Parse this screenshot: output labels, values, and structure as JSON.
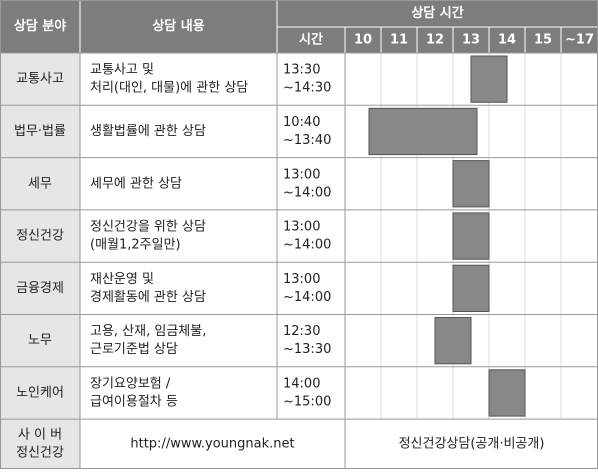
{
  "header": {
    "field": "상담 분야",
    "content": "상담 내용",
    "time_group": "상담 시간",
    "time": "시간",
    "hours": [
      "10",
      "11",
      "12",
      "13",
      "14",
      "15",
      "~17"
    ]
  },
  "rows": [
    {
      "field": "교통사고",
      "content": [
        "교통사고 및",
        "처리(대인, 대물)에 관한 상담"
      ],
      "time": [
        "13:30",
        "~14:30"
      ]
    },
    {
      "field": "법무·법률",
      "content": [
        "생활법률에 관한 상담"
      ],
      "time": [
        "10:40",
        "~13:40"
      ]
    },
    {
      "field": "세무",
      "content": [
        "세무에 관한 상담"
      ],
      "time": [
        "13:00",
        "~14:00"
      ]
    },
    {
      "field": "정신건강",
      "content": [
        "정신건강을 위한 상담",
        "(매월1,2주일만)"
      ],
      "time": [
        "13:00",
        "~14:00"
      ]
    },
    {
      "field": "금융경제",
      "content": [
        "재산운영 및",
        "경제활동에 관한 상담"
      ],
      "time": [
        "13:00",
        "~14:00"
      ]
    },
    {
      "field": "노무",
      "content": [
        "고용, 산재, 임금체불,",
        "근로기준법 상담"
      ],
      "time": [
        "12:30",
        "~13:30"
      ]
    },
    {
      "field": "노인케어",
      "content": [
        "장기요양보험 /",
        "급여이용절차 등"
      ],
      "time": [
        "14:00",
        "~15:00"
      ]
    }
  ],
  "footer": {
    "field": [
      "사 이 버",
      "정신건강"
    ],
    "url": "http://www.youngnak.net",
    "note": "정신건강상담(공개·비공개)"
  }
}
